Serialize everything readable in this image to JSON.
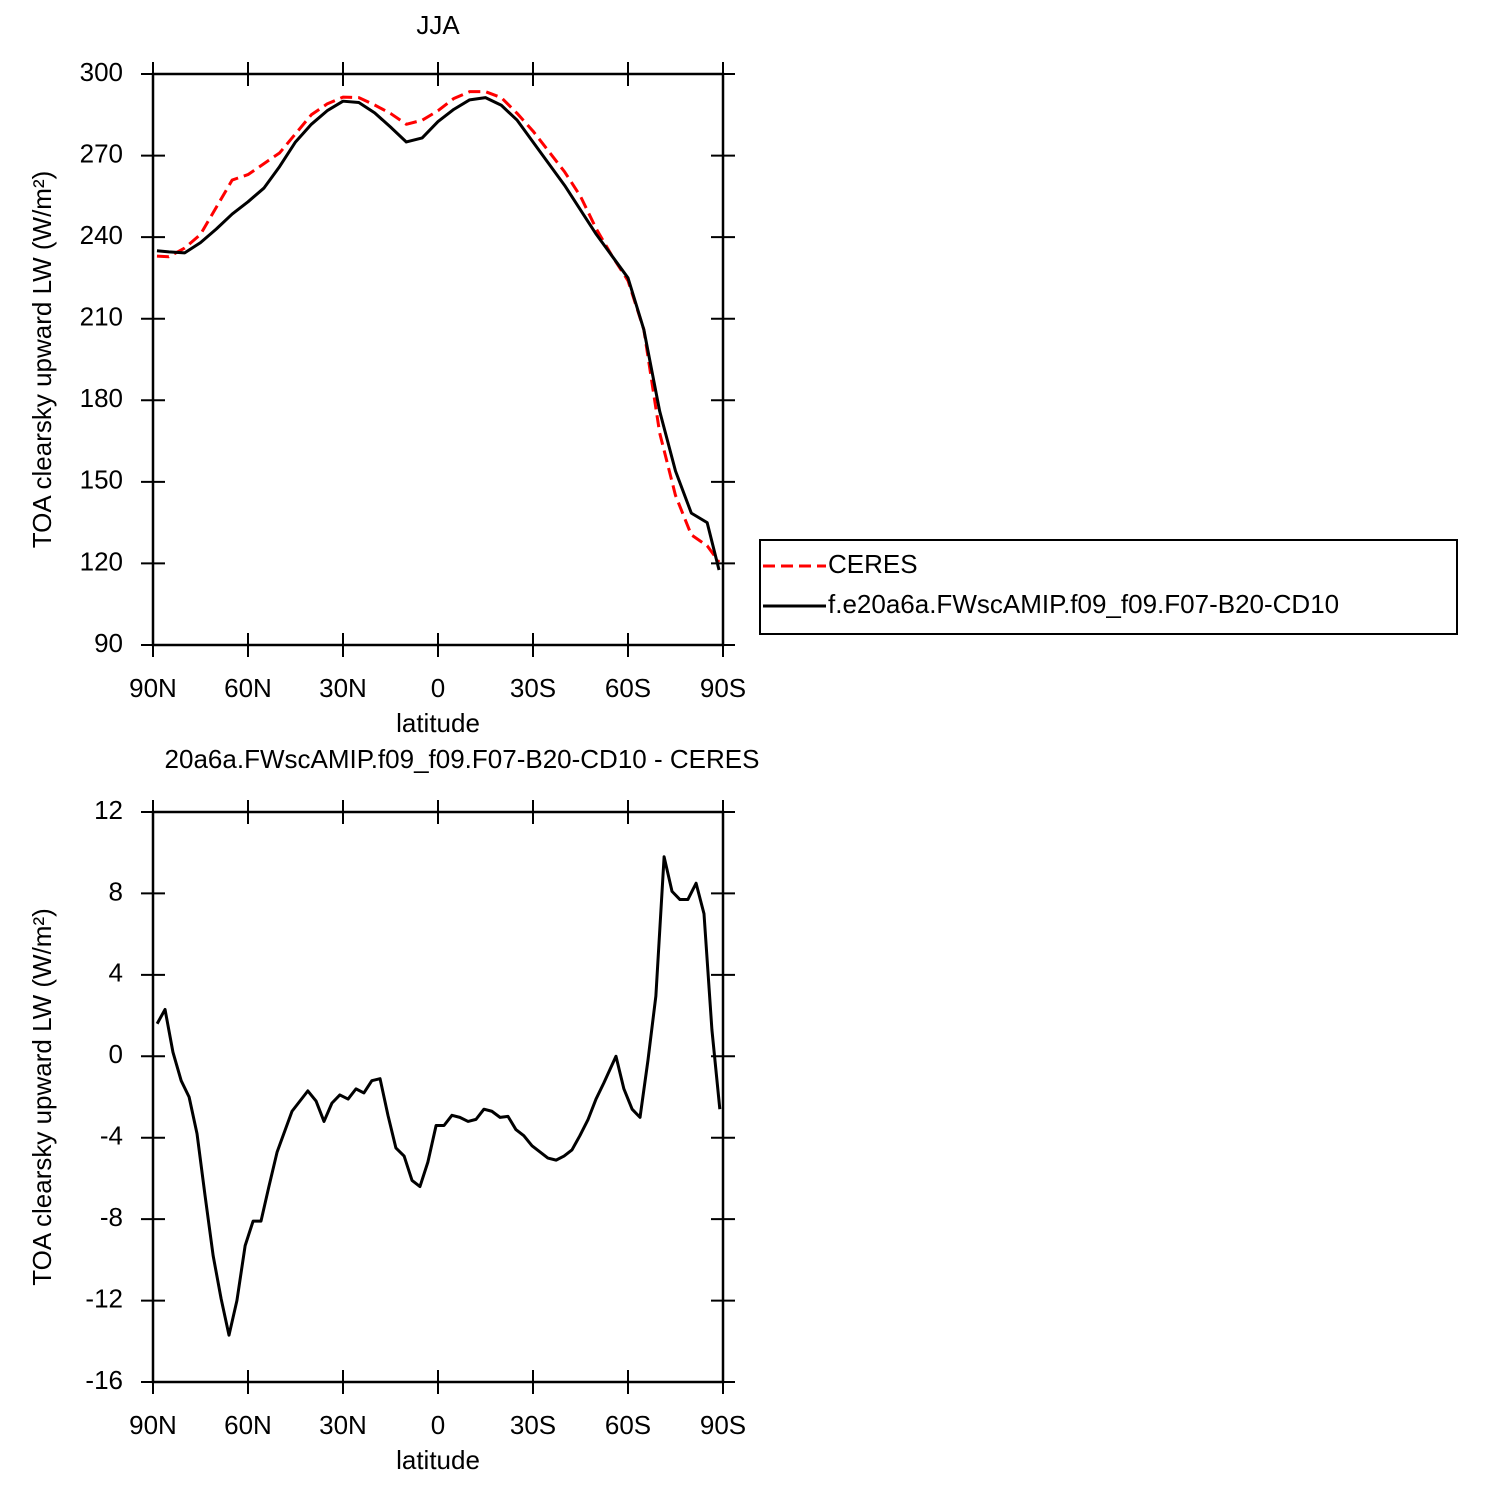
{
  "chart_data": [
    {
      "type": "line",
      "title": "JJA",
      "xlabel": "latitude",
      "ylabel": "TOA clearsky upward LW (W/m²)",
      "x": [
        88.75,
        85,
        80,
        75,
        70,
        65,
        60,
        55,
        50,
        45,
        40,
        35,
        30,
        25,
        20,
        15,
        10,
        5,
        0,
        -5,
        -10,
        -15,
        -20,
        -25,
        -30,
        -35,
        -40,
        -45,
        -50,
        -55,
        -60,
        -65,
        -70,
        -75,
        -80,
        -85,
        -88.75
      ],
      "series": [
        {
          "name": "CERES",
          "color": "#ff0000",
          "style": "dashed",
          "values": [
            233,
            232.8,
            236,
            241,
            251,
            261,
            263,
            267,
            271,
            278,
            285,
            289,
            291.5,
            291.3,
            288.6,
            285.5,
            281.5,
            283,
            286.5,
            291,
            293.5,
            293.5,
            291.3,
            285.5,
            279,
            271.5,
            264,
            255,
            243,
            233,
            224,
            206,
            168,
            145,
            130.5,
            126.5,
            120.5
          ]
        },
        {
          "name": "f.e20a6a.FWscAMIP.f09_f09.F07-B20-CD10",
          "color": "#000000",
          "style": "solid",
          "values": [
            235,
            234.6,
            234.2,
            238,
            243,
            248.5,
            253,
            258,
            266,
            275,
            281.5,
            286.5,
            290,
            289.5,
            285.7,
            280.5,
            275,
            276.5,
            282.5,
            287,
            290.5,
            291.3,
            288.5,
            283,
            275,
            267,
            259,
            250,
            241,
            233,
            225,
            206,
            176,
            154,
            138.5,
            135,
            117.6
          ]
        }
      ],
      "xlim": [
        90,
        -90
      ],
      "xticks": [
        {
          "value": 90,
          "label": "90N"
        },
        {
          "value": 60,
          "label": "60N"
        },
        {
          "value": 30,
          "label": "30N"
        },
        0,
        {
          "value": -30,
          "label": "30S"
        },
        {
          "value": -60,
          "label": "60S"
        },
        {
          "value": -90,
          "label": "90S"
        }
      ],
      "ylim": [
        90,
        300
      ],
      "yticks": [
        90,
        120,
        150,
        180,
        210,
        240,
        270,
        300
      ],
      "legend": "outside-right"
    },
    {
      "type": "line",
      "title": "20a6a.FWscAMIP.f09_f09.F07-B20-CD10 - CERES",
      "xlabel": "latitude",
      "ylabel": "TOA clearsky upward LW (W/m²)",
      "x": [
        88.7,
        86.2,
        83.7,
        81.1,
        78.6,
        76.1,
        73.6,
        71.0,
        68.5,
        66.0,
        63.5,
        60.9,
        58.4,
        55.9,
        53.4,
        50.8,
        46.1,
        41.1,
        38.5,
        36.0,
        33.5,
        31.0,
        28.4,
        25.9,
        23.4,
        20.9,
        18.3,
        15.8,
        13.3,
        10.7,
        8.2,
        5.7,
        3.2,
        0.6,
        -1.9,
        -4.4,
        -6.9,
        -9.5,
        -12.0,
        -14.5,
        -17.0,
        -19.6,
        -22.1,
        -24.6,
        -27.1,
        -29.7,
        -32.2,
        -34.7,
        -37.3,
        -39.8,
        -42.3,
        -44.8,
        -47.4,
        -49.9,
        -52.4,
        -56.2,
        -58.7,
        -61.3,
        -63.8,
        -66.3,
        -68.8,
        -71.4,
        -73.9,
        -76.4,
        -78.9,
        -81.5,
        -84.0,
        -86.5,
        -89.0
      ],
      "color": "#000000",
      "values": [
        1.6,
        2.3,
        0.2,
        -1.2,
        -2.0,
        -3.8,
        -6.8,
        -9.8,
        -11.9,
        -13.7,
        -12.0,
        -9.3,
        -8.1,
        -8.1,
        -6.4,
        -4.7,
        -2.7,
        -1.7,
        -2.2,
        -3.2,
        -2.3,
        -1.9,
        -2.1,
        -1.6,
        -1.8,
        -1.2,
        -1.1,
        -2.9,
        -4.5,
        -4.9,
        -6.1,
        -6.4,
        -5.2,
        -3.4,
        -3.4,
        -2.9,
        -3.0,
        -3.2,
        -3.1,
        -2.6,
        -2.7,
        -3.0,
        -2.95,
        -3.6,
        -3.9,
        -4.4,
        -4.7,
        -5.0,
        -5.1,
        -4.9,
        -4.6,
        -3.9,
        -3.1,
        -2.1,
        -1.3,
        0.0,
        -1.6,
        -2.6,
        -3.0,
        -0.2,
        2.96,
        9.8,
        8.1,
        7.7,
        7.7,
        8.5,
        7.0,
        1.3,
        -2.6
      ],
      "xlim": [
        90,
        -90
      ],
      "xticks": [
        {
          "value": 90,
          "label": "90N"
        },
        {
          "value": 60,
          "label": "60N"
        },
        {
          "value": 30,
          "label": "30N"
        },
        0,
        {
          "value": -30,
          "label": "30S"
        },
        {
          "value": -60,
          "label": "60S"
        },
        {
          "value": -90,
          "label": "90S"
        }
      ],
      "ylim": [
        -16,
        12
      ],
      "yticks": [
        -16,
        -12,
        -8,
        -4,
        0,
        4,
        8,
        12
      ]
    }
  ]
}
